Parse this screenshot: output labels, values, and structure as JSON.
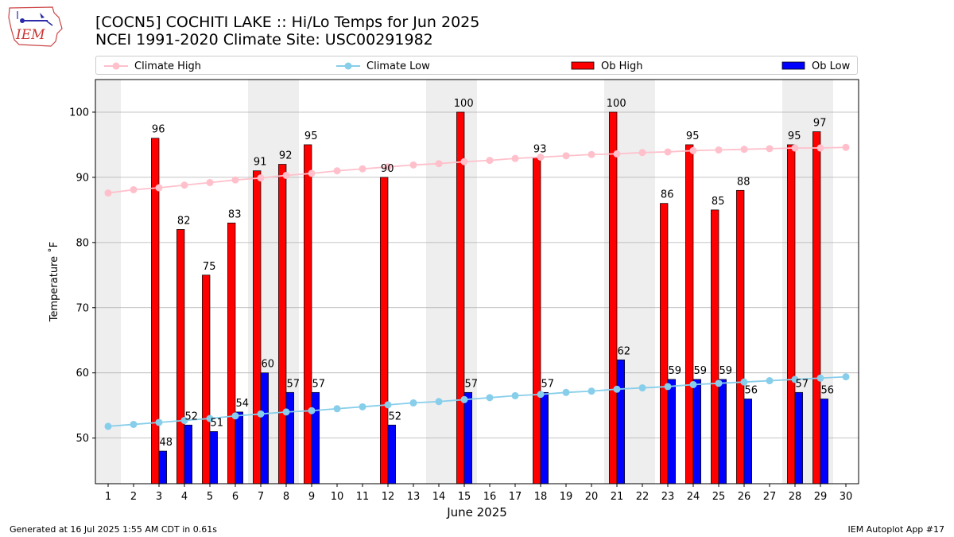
{
  "header": {
    "logo_text": "IEM",
    "title_line1": "[COCN5] COCHITI LAKE :: Hi/Lo Temps for Jun 2025",
    "title_line2": "NCEI 1991-2020 Climate Site: USC00291982"
  },
  "legend": {
    "placement": "top",
    "items": [
      {
        "label": "Climate High",
        "color": "#ffc0cb",
        "kind": "line"
      },
      {
        "label": "Climate Low",
        "color": "#87ceeb",
        "kind": "line"
      },
      {
        "label": "Ob High",
        "color": "#ff0000",
        "kind": "bar"
      },
      {
        "label": "Ob Low",
        "color": "#0000ff",
        "kind": "bar"
      }
    ]
  },
  "chart_data": {
    "type": "bar",
    "xlabel": "June 2025",
    "ylabel": "Temperature ˚F",
    "xlim": [
      0.5,
      30.5
    ],
    "ylim": [
      43,
      105
    ],
    "yticks": [
      50,
      60,
      70,
      80,
      90,
      100
    ],
    "grid": "horizontal",
    "weekend_shading": [
      [
        1,
        1
      ],
      [
        7,
        8
      ],
      [
        14,
        15
      ],
      [
        21,
        22
      ],
      [
        28,
        29
      ]
    ],
    "categories": [
      1,
      2,
      3,
      4,
      5,
      6,
      7,
      8,
      9,
      10,
      11,
      12,
      13,
      14,
      15,
      16,
      17,
      18,
      19,
      20,
      21,
      22,
      23,
      24,
      25,
      26,
      27,
      28,
      29,
      30
    ],
    "series": [
      {
        "name": "Ob High",
        "type": "bar",
        "color": "#ff0000",
        "values": [
          null,
          null,
          96,
          82,
          75,
          83,
          91,
          92,
          95,
          null,
          null,
          90,
          null,
          null,
          100,
          null,
          null,
          93,
          null,
          null,
          100,
          null,
          86,
          95,
          85,
          88,
          null,
          95,
          97,
          null
        ]
      },
      {
        "name": "Ob Low",
        "type": "bar",
        "color": "#0000ff",
        "values": [
          null,
          null,
          48,
          52,
          51,
          54,
          60,
          57,
          57,
          null,
          null,
          52,
          null,
          null,
          57,
          null,
          null,
          57,
          null,
          null,
          62,
          null,
          59,
          59,
          59,
          56,
          null,
          57,
          56,
          null
        ]
      },
      {
        "name": "Climate High",
        "type": "line",
        "color": "#ffc0cb",
        "values": [
          87.6,
          88.1,
          88.4,
          88.8,
          89.2,
          89.6,
          89.9,
          90.3,
          90.6,
          91.0,
          91.3,
          91.6,
          91.9,
          92.1,
          92.4,
          92.6,
          92.9,
          93.1,
          93.3,
          93.5,
          93.6,
          93.8,
          93.9,
          94.1,
          94.2,
          94.3,
          94.4,
          94.5,
          94.5,
          94.6
        ]
      },
      {
        "name": "Climate Low",
        "type": "line",
        "color": "#87ceeb",
        "values": [
          51.8,
          52.1,
          52.4,
          52.7,
          53.0,
          53.4,
          53.7,
          54.0,
          54.2,
          54.5,
          54.8,
          55.1,
          55.4,
          55.6,
          55.9,
          56.2,
          56.5,
          56.7,
          57.0,
          57.2,
          57.5,
          57.7,
          57.9,
          58.2,
          58.4,
          58.6,
          58.8,
          59.0,
          59.2,
          59.4
        ]
      }
    ]
  },
  "footer": {
    "left": "Generated at 16 Jul 2025 1:55 AM CDT in 0.61s",
    "right": "IEM Autoplot App #17"
  }
}
